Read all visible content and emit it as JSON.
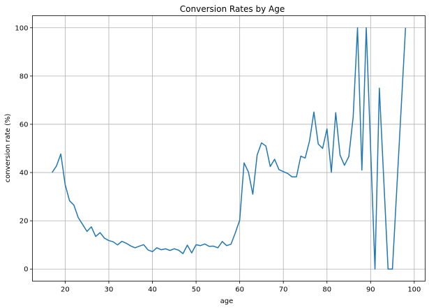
{
  "chart_data": {
    "type": "line",
    "title": "Conversion Rates by Age",
    "xlabel": "age",
    "ylabel": "conversion rate (%)",
    "xlim": [
      12.5,
      102.5
    ],
    "ylim": [
      -5,
      105
    ],
    "xticks": [
      20,
      30,
      40,
      50,
      60,
      70,
      80,
      90,
      100
    ],
    "yticks": [
      0,
      20,
      40,
      60,
      80,
      100
    ],
    "grid": true,
    "line_color": "#1f77b4",
    "series": [
      {
        "x": [
          17,
          18,
          19,
          20,
          21,
          22,
          23,
          24,
          25,
          26,
          27,
          28,
          29,
          30,
          31,
          32,
          33,
          34,
          35,
          36,
          37,
          38,
          39,
          40,
          41,
          42,
          43,
          44,
          45,
          46,
          47,
          48,
          49,
          50,
          51,
          52,
          53,
          54,
          55,
          56,
          57,
          58,
          59,
          60,
          61,
          62,
          63,
          64,
          65,
          66,
          67,
          68,
          69,
          70,
          71,
          72,
          73,
          74,
          75,
          76,
          77,
          78,
          79,
          80,
          81,
          82,
          83,
          84,
          85,
          86,
          87,
          88,
          89,
          90,
          91,
          92,
          94,
          95,
          98
        ],
        "values": [
          40,
          42.7,
          47.7,
          35,
          28.3,
          26.5,
          21.3,
          18.5,
          15.6,
          17.5,
          13.5,
          15.1,
          12.8,
          11.8,
          11.3,
          10,
          11.5,
          10.7,
          9.6,
          8.8,
          9.5,
          10.1,
          7.9,
          7.2,
          8.8,
          8,
          8.4,
          7.7,
          8.4,
          7.8,
          6.4,
          9.9,
          6.7,
          10.1,
          9.7,
          10.4,
          9.4,
          9.5,
          8.8,
          11.4,
          9.7,
          10.3,
          15,
          20.3,
          44,
          40.2,
          31,
          47.3,
          52.3,
          51,
          42.5,
          45.5,
          41.2,
          40.4,
          39.6,
          38.2,
          38.2,
          46.8,
          46,
          53.1,
          65.1,
          51.8,
          50,
          58.1,
          40.1,
          64.8,
          47.2,
          43,
          46.6,
          63,
          100,
          41,
          100,
          50,
          0,
          75,
          0,
          0,
          100
        ]
      }
    ]
  }
}
